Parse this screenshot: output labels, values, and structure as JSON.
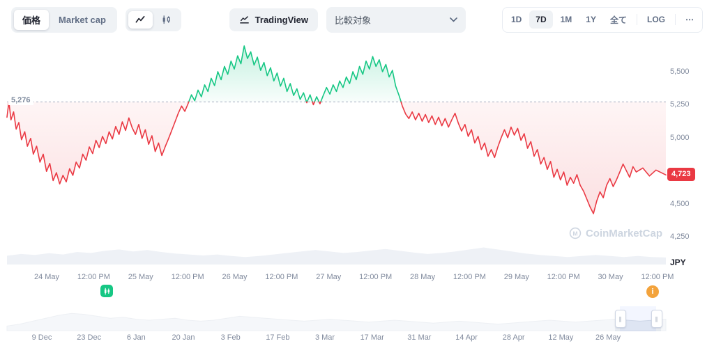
{
  "toolbar": {
    "metric_toggle": {
      "options": [
        "価格",
        "Market cap"
      ],
      "selected": "価格"
    },
    "chart_type_toggle": {
      "options": [
        "line-chart",
        "candlestick-chart"
      ],
      "selected": "line-chart"
    },
    "tradingview_label": "TradingView",
    "compare_placeholder": "比較対象",
    "ranges": [
      "1D",
      "7D",
      "1M",
      "1Y",
      "全て"
    ],
    "selected_range": "7D",
    "log_label": "LOG",
    "more_label": "⋯"
  },
  "chart": {
    "baseline_label": "5,276",
    "current_price_label": "4,723",
    "currency_label": "JPY",
    "watermark_text": "CoinMarketCap",
    "colors": {
      "up": "#16c784",
      "down": "#ea3943",
      "badge": "#ea3943",
      "baseline": "#a2adc0",
      "volume": "#eef1f6",
      "nav_fill": "#e9edf3",
      "nav_stroke": "#d7dde6"
    }
  },
  "chart_data": {
    "type": "line",
    "currency": "JPY",
    "baseline": 5276,
    "last_price": 4723,
    "ylim": [
      4250,
      5700
    ],
    "yticks": [
      {
        "value": 5500,
        "label": "5,500"
      },
      {
        "value": 5250,
        "label": "5,250"
      },
      {
        "value": 5000,
        "label": "5,000"
      },
      {
        "value": 4500,
        "label": "4,500"
      },
      {
        "value": 4250,
        "label": "4,250"
      }
    ],
    "xticks": [
      "24 May",
      "12:00 PM",
      "25 May",
      "12:00 PM",
      "26 May",
      "12:00 PM",
      "27 May",
      "12:00 PM",
      "28 May",
      "12:00 PM",
      "29 May",
      "12:00 PM",
      "30 May",
      "12:00 PM"
    ],
    "series": [
      {
        "name": "price",
        "points": [
          [
            0,
            5160
          ],
          [
            0.003,
            5276
          ],
          [
            0.006,
            5140
          ],
          [
            0.01,
            5200
          ],
          [
            0.014,
            5070
          ],
          [
            0.018,
            5120
          ],
          [
            0.022,
            4990
          ],
          [
            0.027,
            5050
          ],
          [
            0.031,
            4940
          ],
          [
            0.036,
            5000
          ],
          [
            0.04,
            4880
          ],
          [
            0.045,
            4940
          ],
          [
            0.05,
            4820
          ],
          [
            0.055,
            4880
          ],
          [
            0.06,
            4750
          ],
          [
            0.065,
            4810
          ],
          [
            0.07,
            4680
          ],
          [
            0.075,
            4740
          ],
          [
            0.08,
            4655
          ],
          [
            0.085,
            4720
          ],
          [
            0.09,
            4670
          ],
          [
            0.095,
            4770
          ],
          [
            0.1,
            4720
          ],
          [
            0.105,
            4820
          ],
          [
            0.11,
            4775
          ],
          [
            0.115,
            4880
          ],
          [
            0.12,
            4835
          ],
          [
            0.125,
            4935
          ],
          [
            0.13,
            4885
          ],
          [
            0.135,
            4985
          ],
          [
            0.14,
            4930
          ],
          [
            0.145,
            5015
          ],
          [
            0.15,
            4960
          ],
          [
            0.155,
            5050
          ],
          [
            0.16,
            4995
          ],
          [
            0.165,
            5090
          ],
          [
            0.17,
            5030
          ],
          [
            0.175,
            5125
          ],
          [
            0.18,
            5060
          ],
          [
            0.185,
            5155
          ],
          [
            0.19,
            5080
          ],
          [
            0.195,
            5030
          ],
          [
            0.2,
            5105
          ],
          [
            0.205,
            5000
          ],
          [
            0.21,
            5065
          ],
          [
            0.215,
            4955
          ],
          [
            0.22,
            5020
          ],
          [
            0.225,
            4900
          ],
          [
            0.23,
            4965
          ],
          [
            0.235,
            4870
          ],
          [
            0.24,
            4935
          ],
          [
            0.245,
            4995
          ],
          [
            0.25,
            5060
          ],
          [
            0.255,
            5125
          ],
          [
            0.26,
            5190
          ],
          [
            0.265,
            5245
          ],
          [
            0.27,
            5205
          ],
          [
            0.275,
            5265
          ],
          [
            0.28,
            5330
          ],
          [
            0.285,
            5285
          ],
          [
            0.29,
            5365
          ],
          [
            0.295,
            5315
          ],
          [
            0.3,
            5405
          ],
          [
            0.305,
            5355
          ],
          [
            0.31,
            5455
          ],
          [
            0.315,
            5400
          ],
          [
            0.32,
            5505
          ],
          [
            0.325,
            5445
          ],
          [
            0.33,
            5545
          ],
          [
            0.335,
            5485
          ],
          [
            0.34,
            5585
          ],
          [
            0.345,
            5525
          ],
          [
            0.35,
            5625
          ],
          [
            0.355,
            5565
          ],
          [
            0.36,
            5700
          ],
          [
            0.365,
            5605
          ],
          [
            0.37,
            5655
          ],
          [
            0.375,
            5555
          ],
          [
            0.38,
            5615
          ],
          [
            0.385,
            5515
          ],
          [
            0.39,
            5575
          ],
          [
            0.395,
            5475
          ],
          [
            0.4,
            5535
          ],
          [
            0.405,
            5435
          ],
          [
            0.41,
            5495
          ],
          [
            0.415,
            5395
          ],
          [
            0.42,
            5455
          ],
          [
            0.425,
            5355
          ],
          [
            0.43,
            5415
          ],
          [
            0.435,
            5325
          ],
          [
            0.44,
            5375
          ],
          [
            0.445,
            5295
          ],
          [
            0.45,
            5345
          ],
          [
            0.455,
            5270
          ],
          [
            0.46,
            5330
          ],
          [
            0.465,
            5255
          ],
          [
            0.47,
            5315
          ],
          [
            0.475,
            5262
          ],
          [
            0.48,
            5325
          ],
          [
            0.485,
            5385
          ],
          [
            0.49,
            5335
          ],
          [
            0.495,
            5405
          ],
          [
            0.5,
            5355
          ],
          [
            0.505,
            5435
          ],
          [
            0.51,
            5385
          ],
          [
            0.515,
            5465
          ],
          [
            0.52,
            5415
          ],
          [
            0.525,
            5505
          ],
          [
            0.53,
            5445
          ],
          [
            0.535,
            5545
          ],
          [
            0.54,
            5485
          ],
          [
            0.545,
            5585
          ],
          [
            0.55,
            5525
          ],
          [
            0.555,
            5620
          ],
          [
            0.56,
            5545
          ],
          [
            0.565,
            5595
          ],
          [
            0.57,
            5505
          ],
          [
            0.575,
            5560
          ],
          [
            0.58,
            5465
          ],
          [
            0.585,
            5515
          ],
          [
            0.59,
            5395
          ],
          [
            0.595,
            5325
          ],
          [
            0.6,
            5245
          ],
          [
            0.605,
            5185
          ],
          [
            0.61,
            5150
          ],
          [
            0.615,
            5200
          ],
          [
            0.62,
            5140
          ],
          [
            0.625,
            5190
          ],
          [
            0.63,
            5130
          ],
          [
            0.635,
            5180
          ],
          [
            0.64,
            5120
          ],
          [
            0.645,
            5170
          ],
          [
            0.65,
            5105
          ],
          [
            0.655,
            5160
          ],
          [
            0.66,
            5095
          ],
          [
            0.665,
            5150
          ],
          [
            0.67,
            5085
          ],
          [
            0.675,
            5140
          ],
          [
            0.68,
            5190
          ],
          [
            0.685,
            5115
          ],
          [
            0.69,
            5055
          ],
          [
            0.695,
            5105
          ],
          [
            0.7,
            5015
          ],
          [
            0.705,
            5065
          ],
          [
            0.71,
            4965
          ],
          [
            0.715,
            5015
          ],
          [
            0.72,
            4915
          ],
          [
            0.725,
            4965
          ],
          [
            0.73,
            4865
          ],
          [
            0.735,
            4915
          ],
          [
            0.74,
            4855
          ],
          [
            0.745,
            4935
          ],
          [
            0.75,
            5005
          ],
          [
            0.755,
            5065
          ],
          [
            0.76,
            5005
          ],
          [
            0.765,
            5085
          ],
          [
            0.77,
            5025
          ],
          [
            0.775,
            5075
          ],
          [
            0.78,
            4985
          ],
          [
            0.785,
            5035
          ],
          [
            0.79,
            4925
          ],
          [
            0.795,
            4975
          ],
          [
            0.8,
            4865
          ],
          [
            0.805,
            4915
          ],
          [
            0.81,
            4805
          ],
          [
            0.815,
            4855
          ],
          [
            0.82,
            4765
          ],
          [
            0.825,
            4825
          ],
          [
            0.83,
            4705
          ],
          [
            0.835,
            4765
          ],
          [
            0.84,
            4685
          ],
          [
            0.845,
            4745
          ],
          [
            0.85,
            4645
          ],
          [
            0.855,
            4705
          ],
          [
            0.86,
            4660
          ],
          [
            0.865,
            4725
          ],
          [
            0.87,
            4645
          ],
          [
            0.875,
            4600
          ],
          [
            0.88,
            4540
          ],
          [
            0.885,
            4480
          ],
          [
            0.89,
            4430
          ],
          [
            0.895,
            4525
          ],
          [
            0.9,
            4595
          ],
          [
            0.905,
            4550
          ],
          [
            0.91,
            4645
          ],
          [
            0.915,
            4695
          ],
          [
            0.92,
            4635
          ],
          [
            0.925,
            4685
          ],
          [
            0.93,
            4745
          ],
          [
            0.935,
            4805
          ],
          [
            0.94,
            4755
          ],
          [
            0.945,
            4705
          ],
          [
            0.95,
            4785
          ],
          [
            0.955,
            4745
          ],
          [
            0.965,
            4775
          ],
          [
            0.975,
            4715
          ],
          [
            0.985,
            4760
          ],
          [
            1,
            4723
          ]
        ]
      }
    ],
    "volume": [
      0.35,
      0.42,
      0.38,
      0.45,
      0.4,
      0.5,
      0.46,
      0.55,
      0.6,
      0.52,
      0.58,
      0.5,
      0.44,
      0.4,
      0.36,
      0.4,
      0.34,
      0.3,
      0.34,
      0.4,
      0.46,
      0.52,
      0.58,
      0.52,
      0.46,
      0.5,
      0.56,
      0.62,
      0.55,
      0.48,
      0.42,
      0.46,
      0.52,
      0.6,
      0.68,
      0.6,
      0.52,
      0.44,
      0.38,
      0.34,
      0.3,
      0.34,
      0.38,
      0.34,
      0.3,
      0.34,
      0.3,
      0.28
    ]
  },
  "navigator": {
    "dates": [
      "9 Dec",
      "23 Dec",
      "6 Jan",
      "20 Jan",
      "3 Feb",
      "17 Feb",
      "3 Mar",
      "17 Mar",
      "31 Mar",
      "14 Apr",
      "28 Apr",
      "12 May",
      "26 May"
    ],
    "values": [
      0.2,
      0.3,
      0.45,
      0.6,
      0.75,
      0.85,
      0.8,
      0.7,
      0.6,
      0.65,
      0.55,
      0.5,
      0.55,
      0.6,
      0.5,
      0.45,
      0.5,
      0.6,
      0.7,
      0.65,
      0.6,
      0.55,
      0.5,
      0.45,
      0.5,
      0.55,
      0.5,
      0.45,
      0.4,
      0.45,
      0.5,
      0.45,
      0.4,
      0.35,
      0.4,
      0.45,
      0.4,
      0.35,
      0.3,
      0.35,
      0.4,
      0.45,
      0.5,
      0.45,
      0.4,
      0.45,
      0.5,
      0.55,
      0.5,
      0.45,
      0.5,
      0.55
    ]
  },
  "markers": [
    {
      "kind": "chart-event",
      "color": "#16c784",
      "glyph": ""
    },
    {
      "kind": "info",
      "color": "#f3a33c",
      "glyph": "i"
    }
  ]
}
